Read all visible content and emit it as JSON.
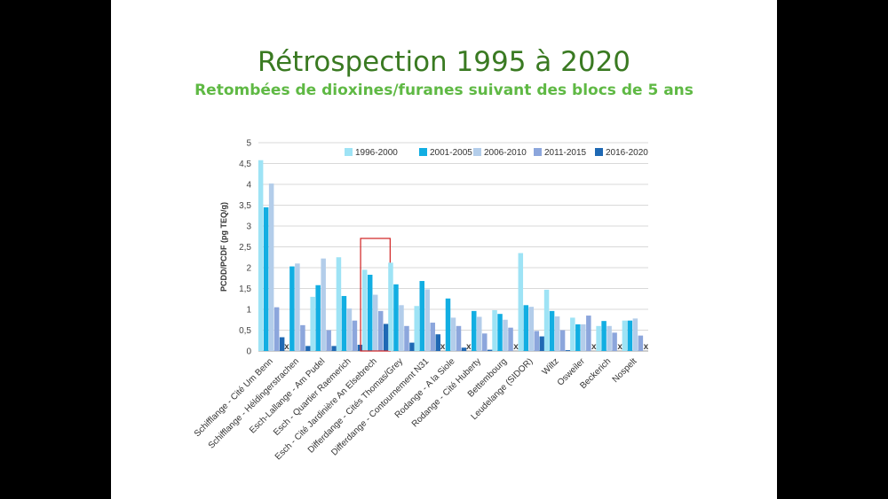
{
  "slide": {
    "title": "Rétrospection 1995 à 2020",
    "subtitle": "Retombées de dioxines/furanes suivant des blocs de 5 ans"
  },
  "chart_data": {
    "type": "bar",
    "ylabel": "PCDD/PCDF (pg TEQ/g)",
    "xlabel": "",
    "ylim": [
      0,
      5
    ],
    "yticks": [
      "0",
      "0,5",
      "1",
      "1,5",
      "2",
      "2,5",
      "3",
      "3,5",
      "4",
      "4,5",
      "5"
    ],
    "grid": true,
    "legend_position": "top-right",
    "missing_marker": "x",
    "highlighted_category": "Esch - Cité Jardinière An Elsebrech",
    "categories": [
      "Schifflange - Cité Um Benn",
      "Schifflange - Héldingerstrachen",
      "Esch-Lallange - Am Pudel",
      "Esch - Quartier Raemerich",
      "Esch - Cité Jardinière An Elsebrech",
      "Differdange - Cités Thomas/Grey",
      "Differdange - Contournement N31",
      "Rodange - A la Siole",
      "Rodange - Cité Huberty",
      "Bettembourg",
      "Leudelange (SIDOR)",
      "Wiltz",
      "Osweiler",
      "Beckerich",
      "Nospelt"
    ],
    "series": [
      {
        "name": "1996-2000",
        "color": "#9ee3f5",
        "values": [
          4.58,
          null,
          1.3,
          2.25,
          1.95,
          2.12,
          1.08,
          null,
          null,
          0.98,
          2.35,
          1.47,
          0.8,
          0.6,
          0.73
        ]
      },
      {
        "name": "2001-2005",
        "color": "#12aee2",
        "values": [
          3.45,
          2.03,
          1.58,
          1.32,
          1.83,
          1.6,
          1.68,
          1.26,
          0.96,
          0.89,
          1.1,
          0.96,
          0.64,
          0.72,
          0.73
        ]
      },
      {
        "name": "2006-2010",
        "color": "#b3cdea",
        "values": [
          4.02,
          2.1,
          2.22,
          1.02,
          1.35,
          1.1,
          1.48,
          0.8,
          0.82,
          0.75,
          1.06,
          0.83,
          0.64,
          0.6,
          0.78
        ]
      },
      {
        "name": "2011-2015",
        "color": "#8ca6dc",
        "values": [
          1.05,
          0.62,
          0.5,
          0.73,
          0.96,
          0.6,
          0.68,
          0.6,
          0.42,
          0.56,
          0.48,
          0.5,
          0.85,
          0.44,
          0.37
        ]
      },
      {
        "name": "2016-2020",
        "color": "#1f69b4",
        "values": [
          0.33,
          0.12,
          0.12,
          0.15,
          0.65,
          0.2,
          0.4,
          0.08,
          0.03,
          null,
          0.35,
          0.02,
          null,
          null,
          null
        ]
      }
    ]
  }
}
